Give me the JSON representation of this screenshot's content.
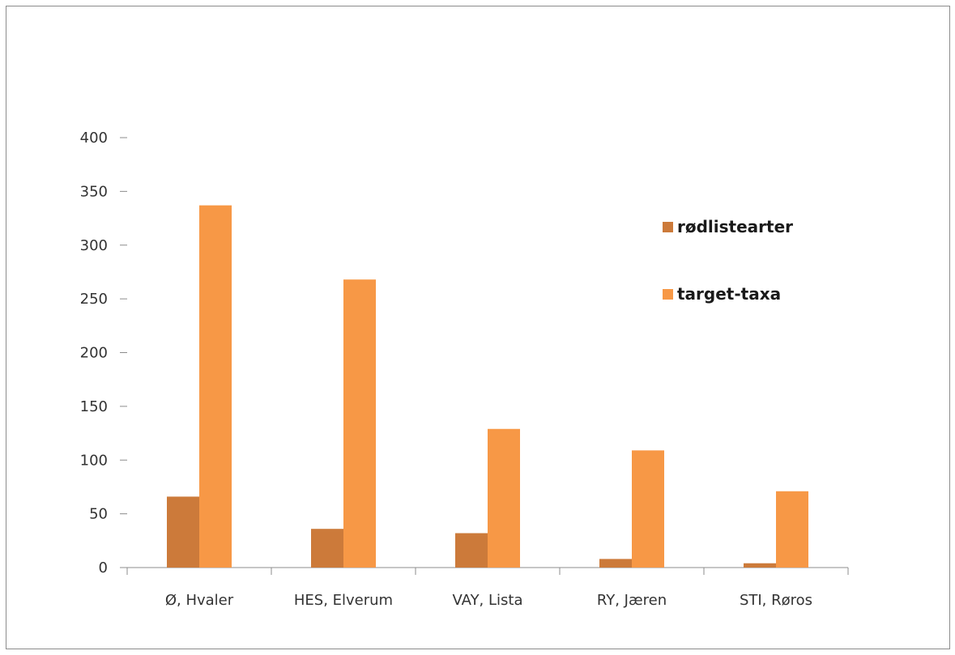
{
  "chart_data": {
    "type": "bar",
    "categories": [
      "Ø, Hvaler",
      "HES, Elverum",
      "VAY, Lista",
      "RY, Jæren",
      "STI, Røros"
    ],
    "series": [
      {
        "name": "rødlistearter",
        "values": [
          66,
          36,
          32,
          8,
          4
        ],
        "color": "#cc7a3a"
      },
      {
        "name": "target-taxa",
        "values": [
          337,
          268,
          129,
          109,
          71
        ],
        "color": "#f79846"
      }
    ],
    "title": "",
    "xlabel": "",
    "ylabel": "",
    "ylim": [
      0,
      400
    ],
    "yticks": [
      "0",
      "50",
      "100",
      "150",
      "200",
      "250",
      "300",
      "350",
      "400"
    ],
    "grid": false,
    "legend_position": "right"
  }
}
